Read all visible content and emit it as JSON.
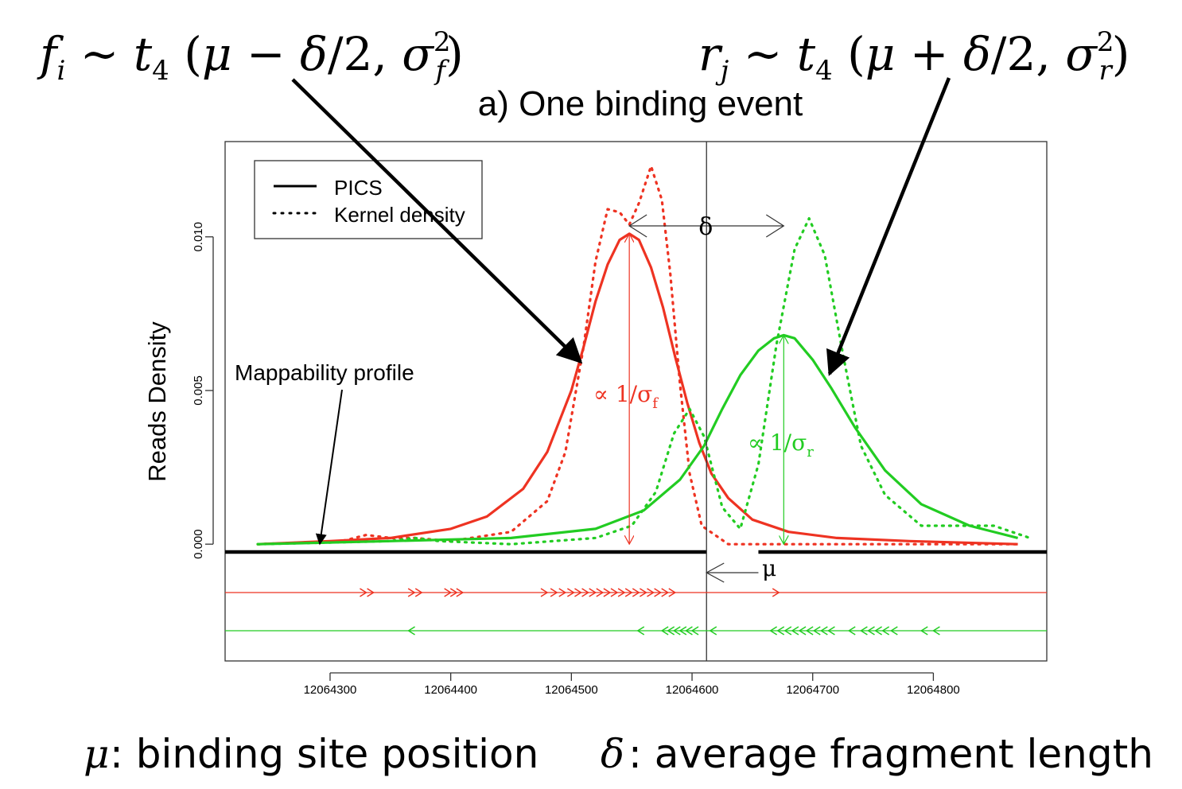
{
  "header": {
    "formula_forward": "f_i ~ t_4(μ − δ/2, σ_f²)",
    "formula_reverse": "r_j ~ t_4(μ + δ/2, σ_r²)"
  },
  "caption": {
    "mu_symbol": "μ",
    "mu_text": ": binding site position",
    "delta_symbol": "δ",
    "delta_text": ": average fragment length"
  },
  "chart_data": {
    "type": "line",
    "title": "a) One binding event",
    "ylabel": "Reads Density",
    "xlabel": "",
    "xlim": [
      12064213,
      12064894
    ],
    "ylim": [
      -0.0038,
      0.0131
    ],
    "x_ticks": [
      12064300,
      12064400,
      12064500,
      12064600,
      12064700,
      12064800
    ],
    "x_tick_labels": [
      "12064300",
      "12064400",
      "12064500",
      "12064600",
      "12064700",
      "12064800"
    ],
    "y_ticks": [
      0.0,
      0.005,
      0.01
    ],
    "y_tick_labels": [
      "0.000",
      "0.005",
      "0.010"
    ],
    "grid": false,
    "legend": {
      "placement": "top-left",
      "entries": [
        {
          "label": "PICS",
          "style": "solid"
        },
        {
          "label": "Kernel density",
          "style": "dotted"
        }
      ]
    },
    "colors": {
      "forward": "#ee3322",
      "reverse": "#22cc22",
      "profile": "#000000",
      "frame": "#333333"
    },
    "binding_site_mu": 12064612,
    "forward_peak": {
      "x": 12064548,
      "y": 0.0101
    },
    "reverse_peak": {
      "x": 12064676,
      "y": 0.0068
    },
    "series": [
      {
        "name": "PICS",
        "color": "#ee3322",
        "style": "solid",
        "x": [
          12064240,
          12064300,
          12064350,
          12064400,
          12064430,
          12064460,
          12064480,
          12064500,
          12064510,
          12064520,
          12064530,
          12064540,
          12064548,
          12064556,
          12064566,
          12064576,
          12064586,
          12064596,
          12064606,
          12064616,
          12064630,
          12064650,
          12064680,
          12064720,
          12064780,
          12064870
        ],
        "y": [
          0.0,
          0.0001,
          0.0002,
          0.0005,
          0.0009,
          0.0018,
          0.003,
          0.005,
          0.0064,
          0.0079,
          0.0091,
          0.0099,
          0.0101,
          0.0099,
          0.009,
          0.0077,
          0.0061,
          0.0046,
          0.0033,
          0.0023,
          0.0015,
          0.0008,
          0.0004,
          0.0002,
          0.0001,
          0.0
        ]
      },
      {
        "name": "Kernel density",
        "color": "#ee3322",
        "style": "dotted",
        "x": [
          12064240,
          12064310,
          12064330,
          12064350,
          12064370,
          12064400,
          12064450,
          12064480,
          12064495,
          12064510,
          12064520,
          12064530,
          12064540,
          12064548,
          12064556,
          12064566,
          12064575,
          12064582,
          12064590,
          12064598,
          12064608,
          12064630,
          12064660,
          12064700,
          12064800,
          12064870
        ],
        "y": [
          0.0,
          0.0001,
          0.0003,
          0.0002,
          0.0002,
          0.0001,
          0.0004,
          0.0014,
          0.003,
          0.0064,
          0.0092,
          0.0109,
          0.0108,
          0.0104,
          0.0111,
          0.0123,
          0.0112,
          0.0088,
          0.0052,
          0.0023,
          0.0006,
          0.0,
          0.0,
          0.0,
          0.0,
          0.0
        ]
      },
      {
        "name": "PICS",
        "color": "#22cc22",
        "style": "solid",
        "x": [
          12064240,
          12064350,
          12064450,
          12064520,
          12064560,
          12064590,
          12064610,
          12064625,
          12064640,
          12064655,
          12064668,
          12064676,
          12064685,
          12064700,
          12064715,
          12064735,
          12064760,
          12064790,
          12064830,
          12064870
        ],
        "y": [
          0.0,
          0.0001,
          0.0002,
          0.0005,
          0.0011,
          0.0021,
          0.0032,
          0.0044,
          0.0055,
          0.0063,
          0.0067,
          0.0068,
          0.0067,
          0.006,
          0.0051,
          0.0038,
          0.0024,
          0.0013,
          0.0006,
          0.0002
        ]
      },
      {
        "name": "Kernel density",
        "color": "#22cc22",
        "style": "dotted",
        "x": [
          12064240,
          12064350,
          12064370,
          12064390,
          12064450,
          12064520,
          12064550,
          12064570,
          12064585,
          12064598,
          12064610,
          12064625,
          12064640,
          12064655,
          12064670,
          12064685,
          12064697,
          12064710,
          12064725,
          12064740,
          12064760,
          12064790,
          12064820,
          12064850,
          12064880
        ],
        "y": [
          0.0,
          0.0001,
          0.0002,
          0.0001,
          0.0,
          0.0002,
          0.0006,
          0.0017,
          0.0036,
          0.0044,
          0.0035,
          0.0012,
          0.0005,
          0.0026,
          0.0065,
          0.0096,
          0.0106,
          0.0094,
          0.0062,
          0.0032,
          0.0016,
          0.0006,
          0.0006,
          0.0006,
          0.0002
        ]
      }
    ],
    "mappability_profile": {
      "label": "Mappability profile",
      "segments": [
        [
          12064213,
          12064612
        ],
        [
          12064655,
          12064894
        ]
      ]
    },
    "forward_reads": {
      "direction": ">",
      "x": [
        12064330,
        12064336,
        12064370,
        12064376,
        12064400,
        12064405,
        12064410,
        12064480,
        12064488,
        12064495,
        12064502,
        12064508,
        12064514,
        12064520,
        12064526,
        12064532,
        12064538,
        12064544,
        12064550,
        12064556,
        12064562,
        12064568,
        12064574,
        12064580,
        12064586,
        12064672
      ]
    },
    "reverse_reads": {
      "direction": "<",
      "x": [
        12064365,
        12064555,
        12064575,
        12064580,
        12064585,
        12064590,
        12064595,
        12064600,
        12064615,
        12064665,
        12064671,
        12064677,
        12064683,
        12064689,
        12064695,
        12064701,
        12064707,
        12064713,
        12064730,
        12064740,
        12064746,
        12064752,
        12064758,
        12064765,
        12064790,
        12064800
      ]
    },
    "annotations": {
      "delta": "δ",
      "mu": "μ",
      "forward_height": "∝ 1/σ",
      "forward_height_sub": "f",
      "reverse_height": "∝ 1/σ",
      "reverse_height_sub": "r"
    }
  }
}
